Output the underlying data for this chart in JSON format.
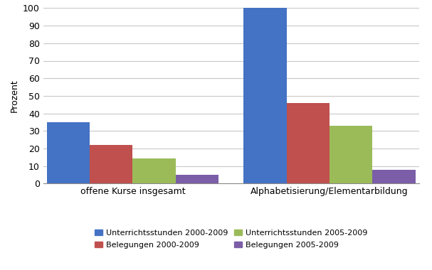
{
  "categories": [
    "offene Kurse insgesamt",
    "Alphabetisierung/Elementarbildung"
  ],
  "series": [
    {
      "label": "Unterrichtsstunden 2000-2009",
      "color": "#4472C4",
      "values": [
        35,
        100
      ]
    },
    {
      "label": "Belegungen 2000-2009",
      "color": "#C0504D",
      "values": [
        22,
        46
      ]
    },
    {
      "label": "Unterrichtsstunden 2005-2009",
      "color": "#9BBB59",
      "values": [
        14.5,
        33
      ]
    },
    {
      "label": "Belegungen 2005-2009",
      "color": "#7B5EA7",
      "values": [
        5,
        8
      ]
    }
  ],
  "ylabel": "Prozent",
  "ylim": [
    0,
    100
  ],
  "yticks": [
    0,
    10,
    20,
    30,
    40,
    50,
    60,
    70,
    80,
    90,
    100
  ],
  "bar_width": 0.12,
  "background_color": "#FFFFFF",
  "plot_bg_color": "#FFFFFF",
  "grid_color": "#C8C8C8"
}
